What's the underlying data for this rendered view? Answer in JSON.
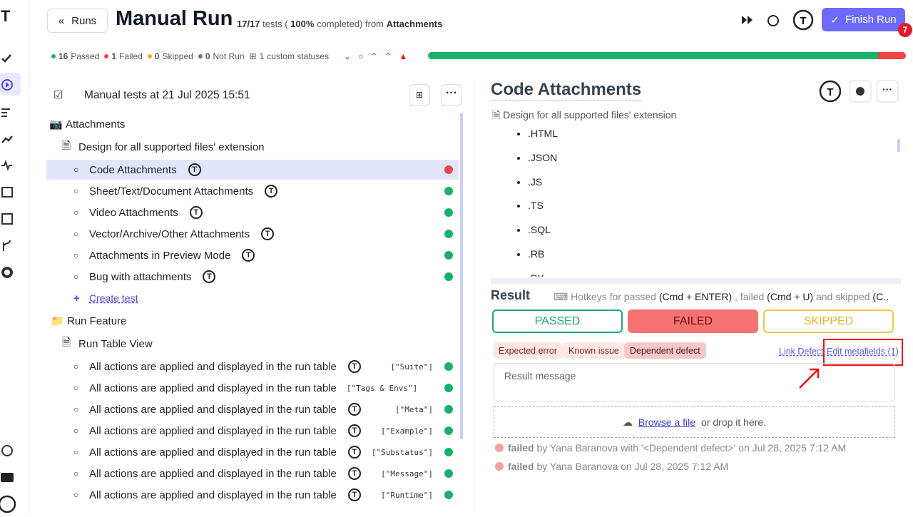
{
  "header": {
    "back": "Runs",
    "title": "Manual Run",
    "count": "17/17",
    "tests_open": "tests (",
    "percent": "100%",
    "completed": "completed) from",
    "suite": "Attachments",
    "finish": "Finish Run",
    "badge": "7"
  },
  "stats": [
    {
      "count": 16,
      "label": "Passed",
      "color": "#17b26a"
    },
    {
      "count": 1,
      "label": "Failed",
      "color": "#ef4444"
    },
    {
      "count": 0,
      "label": "Skipped",
      "color": "#f5a623"
    },
    {
      "count": 0,
      "label": "Not Run",
      "color": "#6b7280"
    }
  ],
  "custom": {
    "count": 1,
    "label": "custom statuses"
  },
  "tree": {
    "run_title": "Manual tests at 21 Jul 2025 15:51",
    "nodes": [
      {
        "kind": "suite",
        "label": "Attachments"
      },
      {
        "kind": "file",
        "label": "Design for all supported files' extension"
      },
      {
        "kind": "test",
        "label": "Code Attachments",
        "status": "failed",
        "avatar": true,
        "selected": true
      },
      {
        "kind": "test",
        "label": "Sheet/Text/Document Attachments",
        "status": "passed",
        "avatar": true
      },
      {
        "kind": "test",
        "label": "Video Attachments",
        "status": "passed",
        "avatar": true
      },
      {
        "kind": "test",
        "label": "Vector/Archive/Other Attachments",
        "status": "passed",
        "avatar": true
      },
      {
        "kind": "test",
        "label": "Attachments in Preview Mode",
        "status": "passed",
        "avatar": true
      },
      {
        "kind": "test",
        "label": "Bug with attachments",
        "status": "passed",
        "avatar": true
      },
      {
        "kind": "create",
        "label": "Create test"
      },
      {
        "kind": "folder",
        "label": "Run Feature"
      },
      {
        "kind": "file",
        "label": "Run Table View"
      },
      {
        "kind": "test",
        "label": "All actions are applied and displayed in the run table",
        "status": "passed",
        "avatar": true,
        "tag": "[\"Suite\"]"
      },
      {
        "kind": "test",
        "label": "All actions are applied and displayed in the run table",
        "status": "passed",
        "avatar": false,
        "tag": "[\"Tags & Envs\"]"
      },
      {
        "kind": "test",
        "label": "All actions are applied and displayed in the run table",
        "status": "passed",
        "avatar": true,
        "tag": "[\"Meta\"]"
      },
      {
        "kind": "test",
        "label": "All actions are applied and displayed in the run table",
        "status": "passed",
        "avatar": true,
        "tag": "[\"Example\"]"
      },
      {
        "kind": "test",
        "label": "All actions are applied and displayed in the run table",
        "status": "passed",
        "avatar": true,
        "tag": "[\"Substatus\"]"
      },
      {
        "kind": "test",
        "label": "All actions are applied and displayed in the run table",
        "status": "passed",
        "avatar": true,
        "tag": "[\"Message\"]"
      },
      {
        "kind": "test",
        "label": "All actions are applied and displayed in the run table",
        "status": "passed",
        "avatar": true,
        "tag": "[\"Runtime\"]"
      }
    ]
  },
  "detail": {
    "title": "Code Attachments",
    "suite": "Design for all supported files' extension",
    "extensions": [
      ".HTML",
      ".JSON",
      ".JS",
      ".TS",
      ".SQL",
      ".RB",
      ".PY"
    ],
    "result": "Result",
    "hotkeys": [
      "Hotkeys for passed",
      "(Cmd + ENTER)",
      ", failed",
      "(Cmd + U)",
      "and skipped",
      "(C..."
    ],
    "buttons": [
      "PASSED",
      "FAILED",
      "SKIPPED"
    ],
    "tags": [
      "Expected error",
      "Known issue",
      "Dependent defect"
    ],
    "link_defect": "Link Defect",
    "edit_metafields": "Edit metafields (1)",
    "message_placeholder": "Result message",
    "browse": "Browse a file",
    "drop": "or drop it here.",
    "history": [
      {
        "status": "failed",
        "text": "by Yana Baranova with '<Dependent defect>' on Jul 28, 2025 7:12 AM"
      },
      {
        "status": "failed",
        "text": "by Yana Baranova on Jul 28, 2025 7:12 AM"
      }
    ]
  }
}
